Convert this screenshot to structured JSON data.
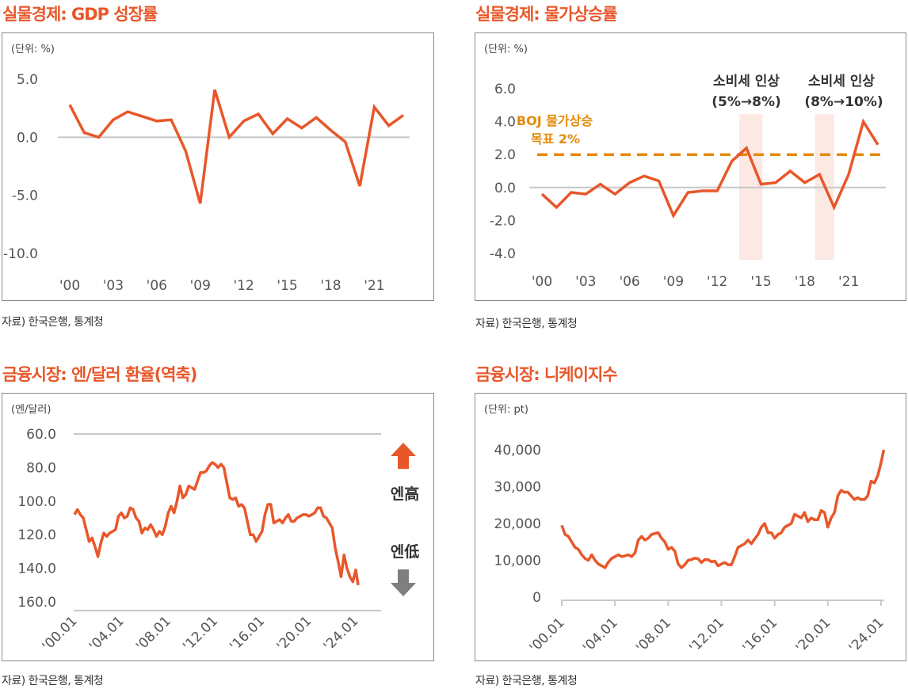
{
  "colors": {
    "accent": "#E8572A",
    "target": "#E48A0B",
    "shade": "#FCE9E4",
    "down_arrow": "#7F7F7F",
    "zero_line": "#C8C8C8"
  },
  "panels": {
    "gdp": {
      "title": "실물경제: GDP 성장률",
      "source": "자료) 한국은행, 통계청"
    },
    "cpi": {
      "title": "실물경제: 물가상승률",
      "source": "자료) 한국은행, 통계청",
      "target_label_line1": "BOJ 물가상승",
      "target_label_line2": "목표 2%",
      "annotations": [
        {
          "line1": "소비세 인상",
          "line2": "(5%→8%)"
        },
        {
          "line1": "소비세 인상",
          "line2": "(8%→10%)"
        }
      ]
    },
    "fx": {
      "title": "금융시장: 엔/달러 환율(역축)",
      "source": "자료) 한국은행, 통계청",
      "up_label": "엔高",
      "down_label": "엔低"
    },
    "nikkei": {
      "title": "금융시장: 니케이지수",
      "source": "자료) 한국은행, 통계청"
    }
  },
  "chart_data": [
    {
      "type": "line",
      "title": "실물경제: GDP 성장률",
      "unit_label": "(단위: %)",
      "ylim": [
        -10,
        5
      ],
      "yticks": [
        5,
        0,
        -5,
        -10
      ],
      "ytick_labels": [
        "5.0",
        "0.0",
        "-5.0",
        "-10.0"
      ],
      "xticks": [
        2000,
        2003,
        2006,
        2009,
        2012,
        2015,
        2018,
        2021
      ],
      "xtick_labels": [
        "'00",
        "'03",
        "'06",
        "'09",
        "'12",
        "'15",
        "'18",
        "'21"
      ],
      "zero_line": true,
      "x": [
        2000,
        2001,
        2002,
        2003,
        2004,
        2005,
        2006,
        2007,
        2008,
        2009,
        2010,
        2011,
        2012,
        2013,
        2014,
        2015,
        2016,
        2017,
        2018,
        2019,
        2020,
        2021,
        2022,
        2023
      ],
      "series": [
        {
          "name": "GDP 성장률",
          "values": [
            2.8,
            0.4,
            0.0,
            1.5,
            2.2,
            1.8,
            1.4,
            1.5,
            -1.2,
            -5.7,
            4.1,
            0.0,
            1.4,
            2.0,
            0.3,
            1.6,
            0.8,
            1.7,
            0.6,
            -0.4,
            -4.2,
            2.6,
            1.0,
            1.9
          ]
        }
      ]
    },
    {
      "type": "line",
      "title": "실물경제: 물가상승률",
      "unit_label": "(단위: %)",
      "ylim": [
        -4.5,
        6
      ],
      "yticks": [
        6,
        4,
        2,
        0,
        -2,
        -4
      ],
      "ytick_labels": [
        "6.0",
        "4.0",
        "2.0",
        "0.0",
        "-2.0",
        "-4.0"
      ],
      "xticks": [
        2000,
        2003,
        2006,
        2009,
        2012,
        2015,
        2018,
        2021
      ],
      "xtick_labels": [
        "'00",
        "'03",
        "'06",
        "'09",
        "'12",
        "'15",
        "'18",
        "'21"
      ],
      "zero_line": true,
      "target_line": 2.0,
      "shaded_ranges": [
        [
          2013.5,
          2015.1
        ],
        [
          2018.7,
          2020.0
        ]
      ],
      "x": [
        2000,
        2001,
        2002,
        2003,
        2004,
        2005,
        2006,
        2007,
        2008,
        2009,
        2010,
        2011,
        2012,
        2013,
        2014,
        2015,
        2016,
        2017,
        2018,
        2019,
        2020,
        2021,
        2022,
        2023
      ],
      "series": [
        {
          "name": "물가상승률",
          "values": [
            -0.4,
            -1.2,
            -0.3,
            -0.4,
            0.2,
            -0.4,
            0.3,
            0.7,
            0.4,
            -1.7,
            -0.3,
            -0.2,
            -0.2,
            1.6,
            2.4,
            0.2,
            0.3,
            1.0,
            0.3,
            0.8,
            -1.2,
            0.8,
            4.0,
            2.6
          ]
        }
      ]
    },
    {
      "type": "line",
      "title": "금융시장: 엔/달러 환율(역축)",
      "unit_label": "(엔/달러)",
      "inverted_y": true,
      "ylim": [
        60,
        160
      ],
      "yticks": [
        60,
        80,
        100,
        120,
        140,
        160
      ],
      "ytick_labels": [
        "60.0",
        "80.0",
        "100.0",
        "120.0",
        "140.0",
        "160.0"
      ],
      "xticks": [
        2000,
        2004,
        2008,
        2012,
        2016,
        2020,
        2024
      ],
      "xtick_labels": [
        "'00.01",
        "'04.01",
        "'08.01",
        "'12.01",
        "'16.01",
        "'20.01",
        "'24.01"
      ],
      "x": [
        2000.0,
        2000.25,
        2000.5,
        2000.75,
        2001.0,
        2001.25,
        2001.5,
        2001.75,
        2002.0,
        2002.25,
        2002.5,
        2002.75,
        2003.0,
        2003.25,
        2003.5,
        2003.75,
        2004.0,
        2004.25,
        2004.5,
        2004.75,
        2005.0,
        2005.25,
        2005.5,
        2005.75,
        2006.0,
        2006.25,
        2006.5,
        2006.75,
        2007.0,
        2007.25,
        2007.5,
        2007.75,
        2008.0,
        2008.25,
        2008.5,
        2008.75,
        2009.0,
        2009.25,
        2009.5,
        2009.75,
        2010.0,
        2010.25,
        2010.5,
        2010.75,
        2011.0,
        2011.25,
        2011.5,
        2011.75,
        2012.0,
        2012.25,
        2012.5,
        2012.75,
        2013.0,
        2013.25,
        2013.5,
        2013.75,
        2014.0,
        2014.25,
        2014.5,
        2014.75,
        2015.0,
        2015.25,
        2015.5,
        2015.75,
        2016.0,
        2016.25,
        2016.5,
        2016.75,
        2017.0,
        2017.25,
        2017.5,
        2017.75,
        2018.0,
        2018.25,
        2018.5,
        2018.75,
        2019.0,
        2019.25,
        2019.5,
        2019.75,
        2020.0,
        2020.25,
        2020.5,
        2020.75,
        2021.0,
        2021.25,
        2021.5,
        2021.75,
        2022.0,
        2022.25,
        2022.5,
        2022.75,
        2023.0,
        2023.25,
        2023.5,
        2023.75,
        2024.0,
        2024.2
      ],
      "series": [
        {
          "name": "엔/달러",
          "values": [
            108,
            105,
            108,
            110,
            117,
            124,
            122,
            127,
            133,
            125,
            119,
            121,
            119,
            118,
            117,
            109,
            107,
            110,
            109,
            104,
            105,
            110,
            112,
            119,
            116,
            117,
            114,
            117,
            121,
            118,
            120,
            115,
            107,
            103,
            107,
            100,
            91,
            98,
            96,
            91,
            92,
            93,
            88,
            83,
            83,
            82,
            79,
            77,
            78,
            80,
            78,
            80,
            89,
            98,
            99,
            98,
            103,
            102,
            104,
            112,
            120,
            120,
            124,
            121,
            118,
            108,
            102,
            102,
            113,
            112,
            111,
            113,
            110,
            108,
            112,
            112,
            110,
            109,
            108,
            108,
            109,
            108,
            107,
            104,
            104,
            109,
            110,
            113,
            116,
            128,
            136,
            145,
            132,
            140,
            145,
            148,
            141,
            150
          ]
        }
      ]
    },
    {
      "type": "line",
      "title": "금융시장: 니케이지수",
      "unit_label": "(단위: pt)",
      "ylim": [
        0,
        40000
      ],
      "yticks": [
        0,
        10000,
        20000,
        30000,
        40000
      ],
      "ytick_labels": [
        "0",
        "10,000",
        "20,000",
        "30,000",
        "40,000"
      ],
      "xticks": [
        2000,
        2004,
        2008,
        2012,
        2016,
        2020,
        2024
      ],
      "xtick_labels": [
        "'00.01",
        "'04.01",
        "'08.01",
        "'12.01",
        "'16.01",
        "'20.01",
        "'24.01"
      ],
      "x": [
        2000.0,
        2000.25,
        2000.5,
        2000.75,
        2001.0,
        2001.25,
        2001.5,
        2001.75,
        2002.0,
        2002.25,
        2002.5,
        2002.75,
        2003.0,
        2003.25,
        2003.5,
        2003.75,
        2004.0,
        2004.25,
        2004.5,
        2004.75,
        2005.0,
        2005.25,
        2005.5,
        2005.75,
        2006.0,
        2006.25,
        2006.5,
        2006.75,
        2007.0,
        2007.25,
        2007.5,
        2007.75,
        2008.0,
        2008.25,
        2008.5,
        2008.75,
        2009.0,
        2009.25,
        2009.5,
        2009.75,
        2010.0,
        2010.25,
        2010.5,
        2010.75,
        2011.0,
        2011.25,
        2011.5,
        2011.75,
        2012.0,
        2012.25,
        2012.5,
        2012.75,
        2013.0,
        2013.25,
        2013.5,
        2013.75,
        2014.0,
        2014.25,
        2014.5,
        2014.75,
        2015.0,
        2015.25,
        2015.5,
        2015.75,
        2016.0,
        2016.25,
        2016.5,
        2016.75,
        2017.0,
        2017.25,
        2017.5,
        2017.75,
        2018.0,
        2018.25,
        2018.5,
        2018.75,
        2019.0,
        2019.25,
        2019.5,
        2019.75,
        2020.0,
        2020.25,
        2020.5,
        2020.75,
        2021.0,
        2021.25,
        2021.5,
        2021.75,
        2022.0,
        2022.25,
        2022.5,
        2022.75,
        2023.0,
        2023.25,
        2023.5,
        2023.75,
        2024.0,
        2024.2
      ],
      "series": [
        {
          "name": "니케이지수",
          "values": [
            19500,
            17000,
            16500,
            15000,
            13500,
            13000,
            11500,
            10500,
            10000,
            11500,
            10000,
            9000,
            8500,
            8000,
            9500,
            10500,
            11000,
            11500,
            11000,
            11200,
            11500,
            11000,
            12000,
            15500,
            16500,
            15500,
            16000,
            17000,
            17300,
            17500,
            16000,
            15000,
            13000,
            13500,
            12500,
            9000,
            8000,
            8800,
            10000,
            10200,
            10600,
            10400,
            9400,
            10200,
            10200,
            9600,
            9800,
            8500,
            9000,
            9400,
            8800,
            8800,
            11000,
            13500,
            14000,
            14500,
            15500,
            14500,
            15800,
            17000,
            19000,
            20000,
            17500,
            17500,
            16000,
            17000,
            17500,
            19000,
            19500,
            20000,
            22500,
            22000,
            21500,
            23000,
            20500,
            21500,
            21000,
            21000,
            23500,
            23000,
            19000,
            21500,
            23000,
            27500,
            29000,
            28500,
            28500,
            27500,
            26500,
            27000,
            26500,
            26500,
            27500,
            31500,
            31000,
            33000,
            36500,
            40000
          ]
        }
      ]
    }
  ]
}
